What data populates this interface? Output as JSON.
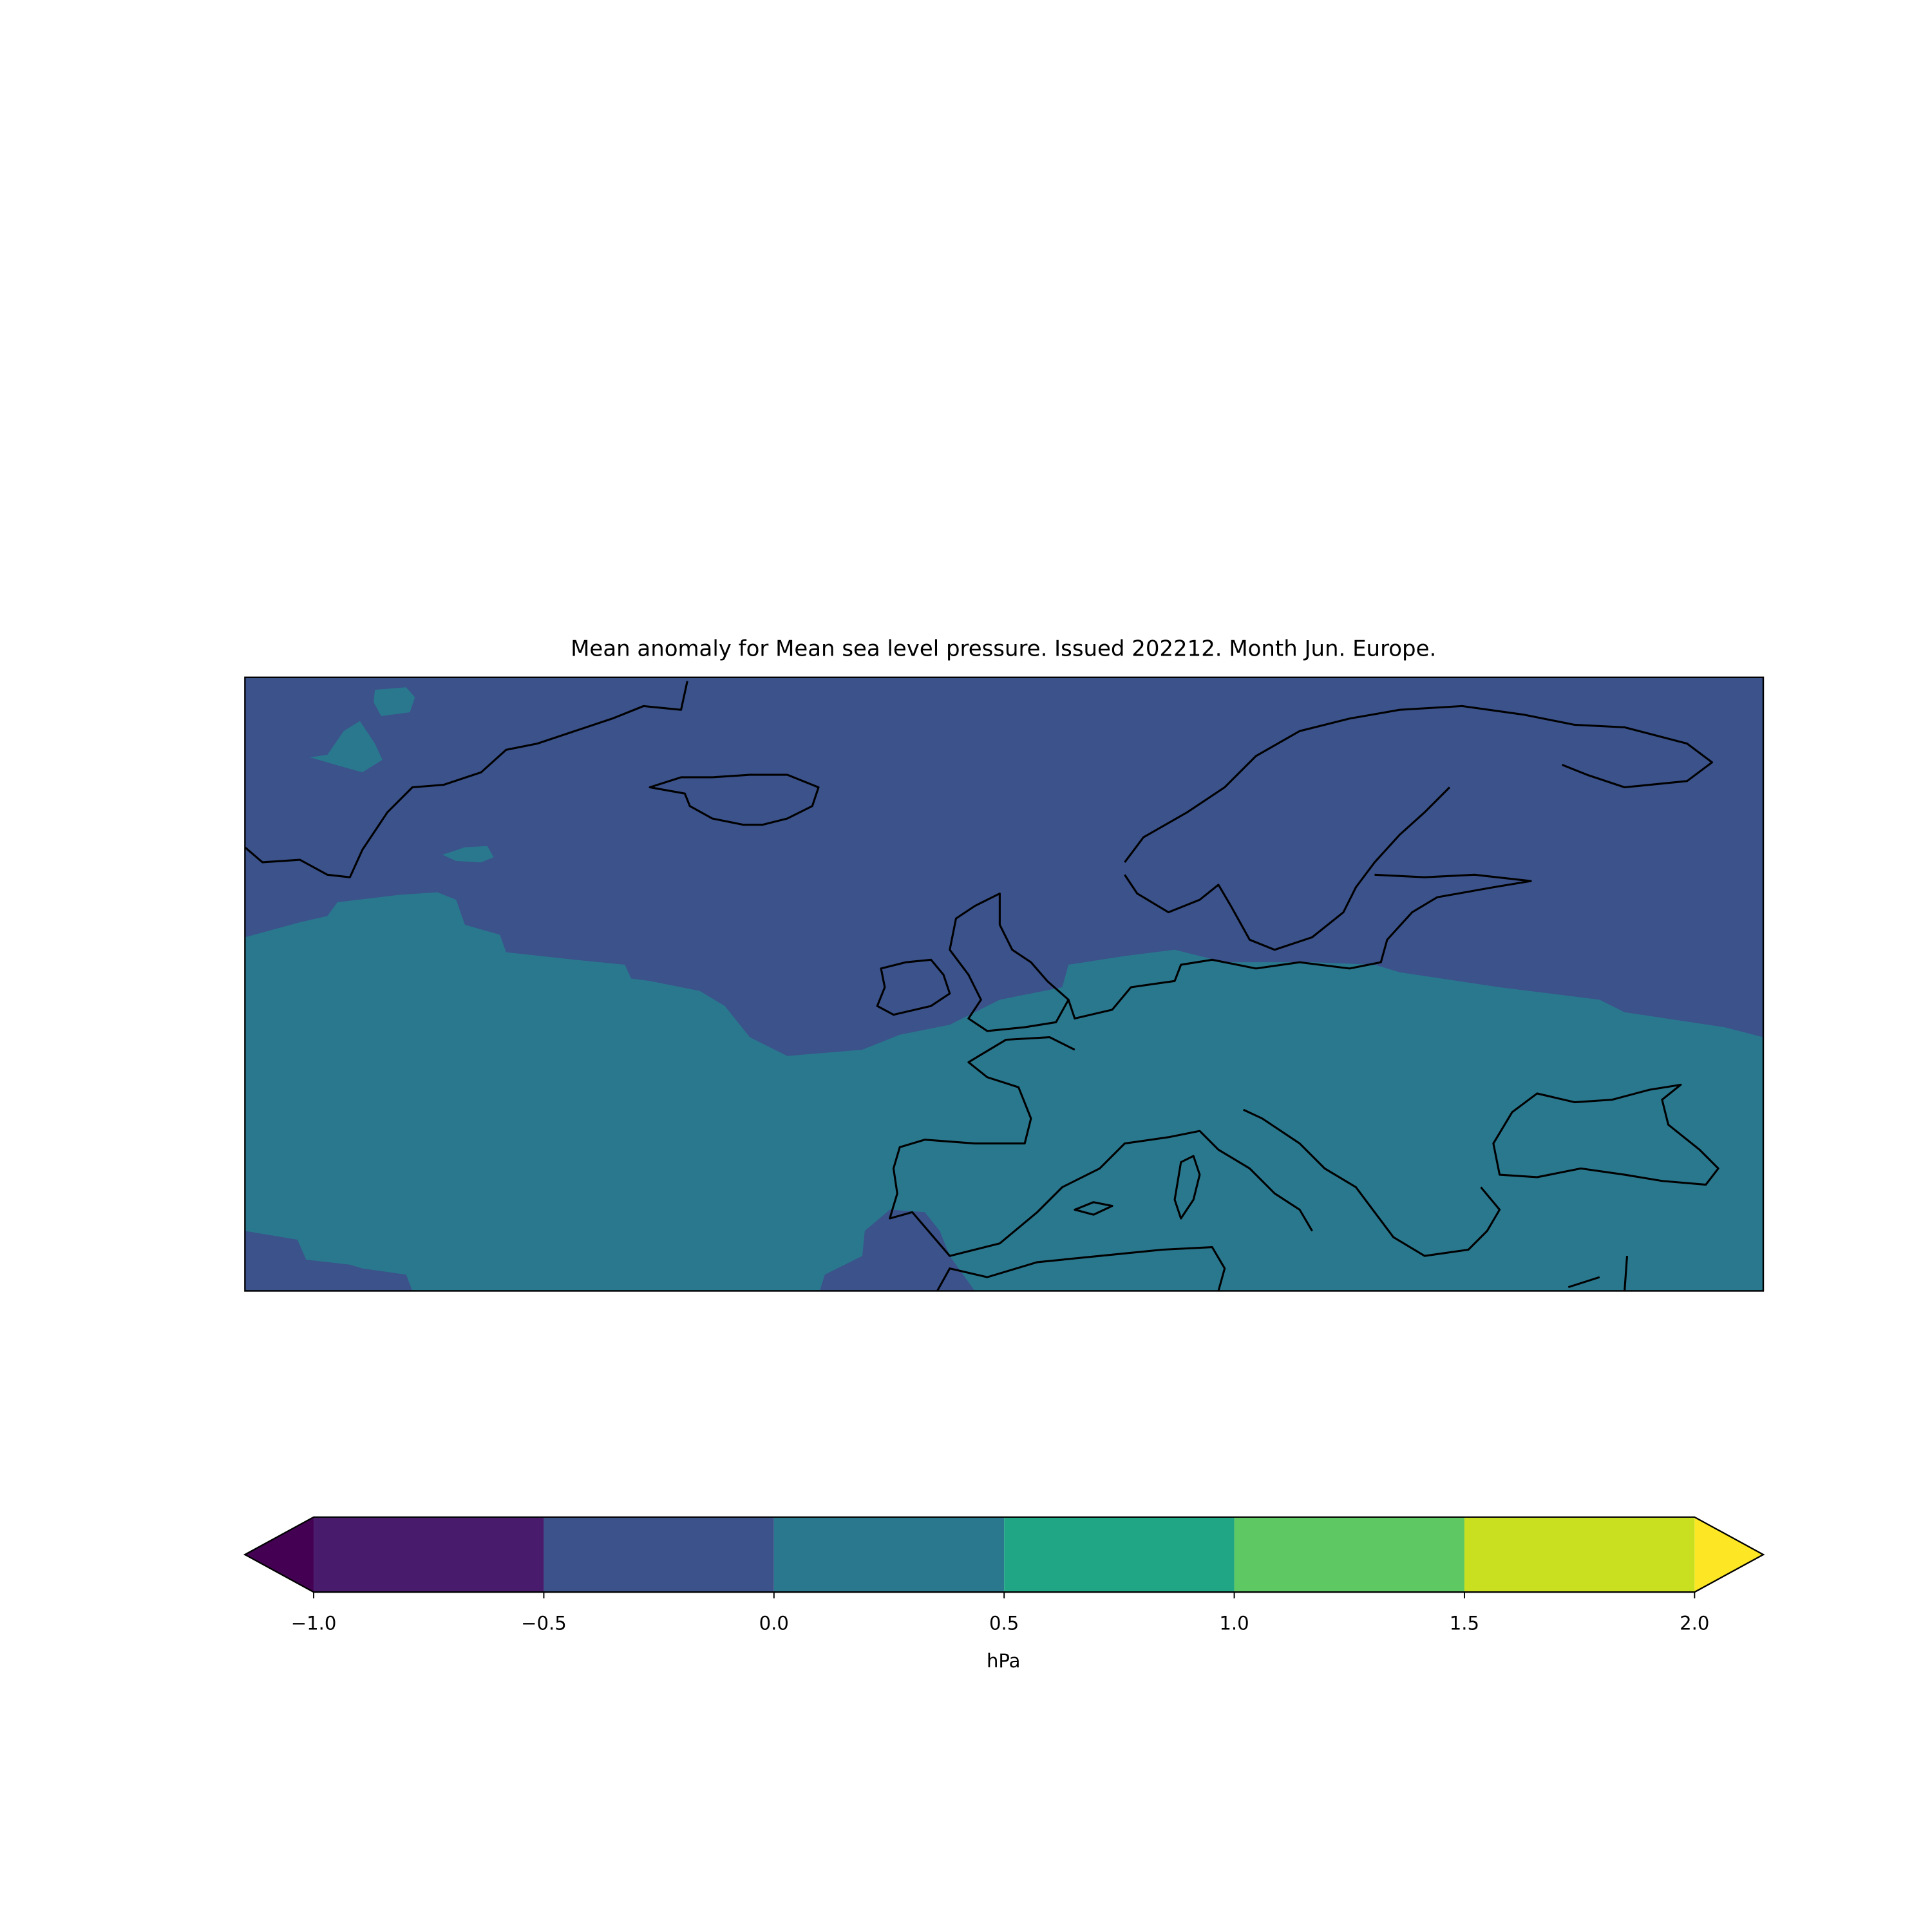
{
  "title": "Mean anomaly for Mean sea level pressure. Issued 202212. Month Jun. Europe.",
  "colorbar": {
    "label": "hPa",
    "boundaries": [
      -1.0,
      -0.5,
      0.0,
      0.5,
      1.0,
      1.5,
      2.0
    ],
    "colors": [
      "#481b6d",
      "#3b528b",
      "#2a788e",
      "#21a685",
      "#5ec962",
      "#c8e020"
    ],
    "under_color": "#440154",
    "over_color": "#fde725",
    "ticks": [
      {
        "value": -1.0,
        "label": "−1.0"
      },
      {
        "value": -0.5,
        "label": "−0.5"
      },
      {
        "value": 0.0,
        "label": "0.0"
      },
      {
        "value": 0.5,
        "label": "0.5"
      },
      {
        "value": 1.0,
        "label": "1.0"
      },
      {
        "value": 1.5,
        "label": "1.5"
      },
      {
        "value": 2.0,
        "label": "2.0"
      }
    ]
  }
}
